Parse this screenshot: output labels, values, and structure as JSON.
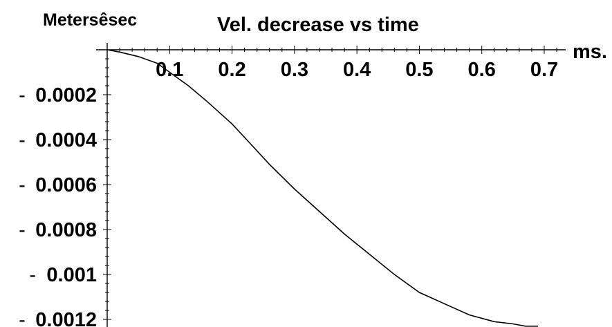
{
  "chart_data": {
    "type": "line",
    "title": "Vel. decrease vs time",
    "ylabel": "Metersêsec",
    "xlabel": "ms.",
    "xlim": [
      0,
      0.72
    ],
    "ylim": [
      -0.00123,
      0
    ],
    "grid": false,
    "xticks": [
      {
        "value": 0.1,
        "label": "0.1"
      },
      {
        "value": 0.2,
        "label": "0.2"
      },
      {
        "value": 0.3,
        "label": "0.3"
      },
      {
        "value": 0.4,
        "label": "0.4"
      },
      {
        "value": 0.5,
        "label": "0.5"
      },
      {
        "value": 0.6,
        "label": "0.6"
      },
      {
        "value": 0.7,
        "label": "0.7"
      }
    ],
    "yticks": [
      {
        "value": -0.0002,
        "label": "0.0002"
      },
      {
        "value": -0.0004,
        "label": "0.0004"
      },
      {
        "value": -0.0006,
        "label": "0.0006"
      },
      {
        "value": -0.0008,
        "label": "0.0008"
      },
      {
        "value": -0.001,
        "label": "0.001"
      },
      {
        "value": -0.0012,
        "label": "0.0012"
      }
    ],
    "ytick_prefix": "-",
    "series": [
      {
        "x": [
          0.0,
          0.02,
          0.05,
          0.08,
          0.1,
          0.13,
          0.16,
          0.2,
          0.23,
          0.26,
          0.3,
          0.34,
          0.38,
          0.42,
          0.46,
          0.5,
          0.54,
          0.58,
          0.62,
          0.65,
          0.67,
          0.69
        ],
        "y": [
          0.0,
          -1e-05,
          -3e-05,
          -6e-05,
          -0.0001,
          -0.00016,
          -0.00023,
          -0.00033,
          -0.00042,
          -0.00051,
          -0.00062,
          -0.00072,
          -0.00082,
          -0.00091,
          -0.001,
          -0.00108,
          -0.00113,
          -0.00118,
          -0.00121,
          -0.00122,
          -0.00123,
          -0.00123
        ]
      }
    ]
  }
}
